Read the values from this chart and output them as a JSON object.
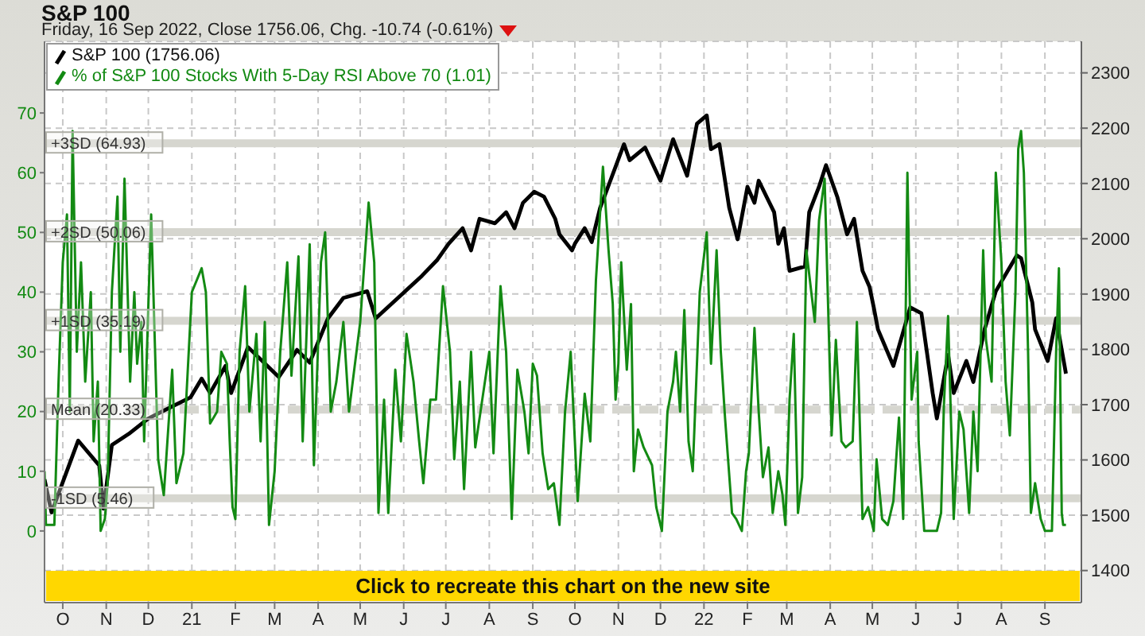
{
  "chart_data": {
    "type": "line",
    "title": "S&P 100",
    "subtitle": "Friday, 16 Sep 2022, Close 1756.06, Chg. -10.74 (-0.61%)",
    "annotations": [
      "Click to recreate this chart on the new site"
    ],
    "legend": "top left",
    "grid": true,
    "marker": "none",
    "xlim": [
      "2020-09-18",
      "2022-09-27"
    ],
    "xticks": [
      {
        "value": "2020-10-01",
        "label": "O"
      },
      {
        "value": "2020-11-01",
        "label": "N"
      },
      {
        "value": "2020-12-01",
        "label": "D"
      },
      {
        "value": "2021-01-01",
        "label": "21"
      },
      {
        "value": "2021-02-01",
        "label": "F"
      },
      {
        "value": "2021-03-01",
        "label": "M"
      },
      {
        "value": "2021-04-01",
        "label": "A"
      },
      {
        "value": "2021-05-01",
        "label": "M"
      },
      {
        "value": "2021-06-01",
        "label": "J"
      },
      {
        "value": "2021-07-01",
        "label": "J"
      },
      {
        "value": "2021-08-01",
        "label": "A"
      },
      {
        "value": "2021-09-01",
        "label": "S"
      },
      {
        "value": "2021-10-01",
        "label": "O"
      },
      {
        "value": "2021-11-01",
        "label": "N"
      },
      {
        "value": "2021-12-01",
        "label": "D"
      },
      {
        "value": "2022-01-01",
        "label": "22"
      },
      {
        "value": "2022-02-01",
        "label": "F"
      },
      {
        "value": "2022-03-01",
        "label": "M"
      },
      {
        "value": "2022-04-01",
        "label": "A"
      },
      {
        "value": "2022-05-01",
        "label": "M"
      },
      {
        "value": "2022-06-01",
        "label": "J"
      },
      {
        "value": "2022-07-01",
        "label": "J"
      },
      {
        "value": "2022-08-01",
        "label": "A"
      },
      {
        "value": "2022-09-01",
        "label": "S"
      }
    ],
    "ylim": [
      -12,
      82
    ],
    "yticks": [
      0,
      10,
      20,
      30,
      40,
      50,
      60,
      70
    ],
    "y2lim": [
      1342,
      2357
    ],
    "y2ticks": [
      1400,
      1500,
      1600,
      1700,
      1800,
      1900,
      2000,
      2100,
      2200,
      2300
    ],
    "ref_lines": [
      {
        "axis": "y",
        "value": 64.93,
        "label": "+3SD (64.93)",
        "color": "#d6d6cf"
      },
      {
        "axis": "y",
        "value": 50.06,
        "label": "+2SD (50.06)",
        "color": "#d6d6cf"
      },
      {
        "axis": "y",
        "value": 35.19,
        "label": "+1SD (35.19)",
        "color": "#d6d6cf"
      },
      {
        "axis": "y",
        "value": 20.33,
        "label": "Mean (20.33)",
        "color": "#d6d6cf",
        "line_style": "dashed"
      },
      {
        "axis": "y",
        "value": 5.46,
        "label": "-1SD (5.46)",
        "color": "#d6d6cf"
      }
    ],
    "series": [
      {
        "name": "S&P 100 (1756.06)",
        "color": "#000000",
        "axis": "y2",
        "x": [
          "2020-09-18",
          "2020-09-23",
          "2020-10-12",
          "2020-10-27",
          "2020-10-30",
          "2020-11-05",
          "2020-11-17",
          "2020-12-01",
          "2020-12-15",
          "2020-12-31",
          "2021-01-08",
          "2021-01-14",
          "2021-01-25",
          "2021-01-29",
          "2021-02-10",
          "2021-03-04",
          "2021-03-17",
          "2021-03-26",
          "2021-04-08",
          "2021-04-19",
          "2021-05-06",
          "2021-05-12",
          "2021-06-02",
          "2021-06-14",
          "2021-06-25",
          "2021-07-03",
          "2021-07-13",
          "2021-07-19",
          "2021-07-25",
          "2021-08-05",
          "2021-08-13",
          "2021-08-19",
          "2021-08-25",
          "2021-09-02",
          "2021-09-09",
          "2021-09-17",
          "2021-09-20",
          "2021-09-29",
          "2021-10-01",
          "2021-10-08",
          "2021-10-13",
          "2021-10-19",
          "2021-10-22",
          "2021-11-05",
          "2021-11-09",
          "2021-11-20",
          "2021-12-01",
          "2021-12-10",
          "2021-12-20",
          "2021-12-27",
          "2022-01-03",
          "2022-01-06",
          "2022-01-12",
          "2022-01-19",
          "2022-01-25",
          "2022-02-01",
          "2022-02-06",
          "2022-02-09",
          "2022-02-20",
          "2022-02-23",
          "2022-02-27",
          "2022-03-03",
          "2022-03-14",
          "2022-03-17",
          "2022-03-24",
          "2022-03-29",
          "2022-04-06",
          "2022-04-13",
          "2022-04-18",
          "2022-04-24",
          "2022-04-29",
          "2022-05-02",
          "2022-05-05",
          "2022-05-16",
          "2022-05-28",
          "2022-06-05",
          "2022-06-13",
          "2022-06-16",
          "2022-06-24",
          "2022-06-28",
          "2022-07-07",
          "2022-07-12",
          "2022-07-20",
          "2022-07-28",
          "2022-08-12",
          "2022-08-15",
          "2022-08-23",
          "2022-08-25",
          "2022-09-03",
          "2022-09-09",
          "2022-09-16"
        ],
        "values": [
          1565,
          1505,
          1635,
          1590,
          1512,
          1627,
          1647,
          1675,
          1693,
          1713,
          1747,
          1721,
          1770,
          1721,
          1804,
          1750,
          1799,
          1776,
          1856,
          1893,
          1905,
          1856,
          1905,
          1933,
          1962,
          1991,
          2019,
          1979,
          2036,
          2028,
          2048,
          2019,
          2065,
          2085,
          2076,
          2036,
          2008,
          1979,
          1991,
          2019,
          1994,
          2056,
          2076,
          2171,
          2142,
          2165,
          2105,
          2180,
          2114,
          2208,
          2223,
          2162,
          2171,
          2056,
          1999,
          2094,
          2065,
          2105,
          2048,
          1991,
          2019,
          1942,
          1950,
          2048,
          2094,
          2133,
          2076,
          2008,
          2036,
          1942,
          1913,
          1876,
          1836,
          1770,
          1876,
          1865,
          1721,
          1675,
          1790,
          1721,
          1779,
          1741,
          1836,
          1905,
          1970,
          1965,
          1885,
          1836,
          1779,
          1856,
          1756
        ]
      },
      {
        "name": "% of S&P 100 Stocks With 5-Day RSI Above 70 (1.01)",
        "color": "#138a13",
        "x": [
          "2020-09-18",
          "2020-09-19",
          "2020-09-25",
          "2020-09-28",
          "2020-10-01",
          "2020-10-04",
          "2020-10-06",
          "2020-10-08",
          "2020-10-11",
          "2020-10-14",
          "2020-10-17",
          "2020-10-21",
          "2020-10-23",
          "2020-10-26",
          "2020-10-28",
          "2020-10-31",
          "2020-11-02",
          "2020-11-05",
          "2020-11-09",
          "2020-11-11",
          "2020-11-14",
          "2020-11-18",
          "2020-11-21",
          "2020-11-23",
          "2020-11-26",
          "2020-11-28",
          "2020-12-03",
          "2020-12-08",
          "2020-12-12",
          "2020-12-18",
          "2020-12-21",
          "2020-12-26",
          "2021-01-01",
          "2021-01-08",
          "2021-01-11",
          "2021-01-14",
          "2021-01-19",
          "2021-01-22",
          "2021-01-26",
          "2021-01-28",
          "2021-01-30",
          "2021-02-01",
          "2021-02-04",
          "2021-02-08",
          "2021-02-11",
          "2021-02-16",
          "2021-02-19",
          "2021-02-22",
          "2021-02-25",
          "2021-03-01",
          "2021-03-05",
          "2021-03-10",
          "2021-03-13",
          "2021-03-18",
          "2021-03-21",
          "2021-03-26",
          "2021-03-29",
          "2021-04-03",
          "2021-04-06",
          "2021-04-10",
          "2021-04-14",
          "2021-04-19",
          "2021-04-23",
          "2021-05-01",
          "2021-05-07",
          "2021-05-11",
          "2021-05-14",
          "2021-05-18",
          "2021-05-21",
          "2021-05-26",
          "2021-05-30",
          "2021-06-03",
          "2021-06-08",
          "2021-06-12",
          "2021-06-15",
          "2021-06-20",
          "2021-06-24",
          "2021-06-29",
          "2021-07-04",
          "2021-07-07",
          "2021-07-11",
          "2021-07-14",
          "2021-07-19",
          "2021-07-22",
          "2021-07-27",
          "2021-08-01",
          "2021-08-04",
          "2021-08-09",
          "2021-08-13",
          "2021-08-17",
          "2021-08-21",
          "2021-08-26",
          "2021-08-29",
          "2021-09-01",
          "2021-09-04",
          "2021-09-08",
          "2021-09-12",
          "2021-09-16",
          "2021-09-20",
          "2021-09-24",
          "2021-09-28",
          "2021-10-03",
          "2021-10-08",
          "2021-10-12",
          "2021-10-16",
          "2021-10-21",
          "2021-10-25",
          "2021-10-28",
          "2021-10-30",
          "2021-11-01",
          "2021-11-03",
          "2021-11-07",
          "2021-11-10",
          "2021-11-12",
          "2021-11-15",
          "2021-11-19",
          "2021-11-25",
          "2021-11-28",
          "2021-12-02",
          "2021-12-06",
          "2021-12-10",
          "2021-12-12",
          "2021-12-15",
          "2021-12-18",
          "2021-12-21",
          "2021-12-24",
          "2021-12-29",
          "2022-01-03",
          "2022-01-06",
          "2022-01-10",
          "2022-01-13",
          "2022-01-16",
          "2022-01-21",
          "2022-01-24",
          "2022-01-28",
          "2022-01-31",
          "2022-02-02",
          "2022-02-06",
          "2022-02-09",
          "2022-02-12",
          "2022-02-16",
          "2022-02-19",
          "2022-02-23",
          "2022-02-26",
          "2022-02-28",
          "2022-03-03",
          "2022-03-06",
          "2022-03-09",
          "2022-03-12",
          "2022-03-15",
          "2022-03-19",
          "2022-03-21",
          "2022-03-24",
          "2022-03-28",
          "2022-04-02",
          "2022-04-05",
          "2022-04-09",
          "2022-04-12",
          "2022-04-17",
          "2022-04-20",
          "2022-04-24",
          "2022-04-28",
          "2022-05-02",
          "2022-05-04",
          "2022-05-08",
          "2022-05-12",
          "2022-05-16",
          "2022-05-20",
          "2022-05-23",
          "2022-05-26",
          "2022-05-29",
          "2022-06-02",
          "2022-06-03",
          "2022-06-07",
          "2022-06-11",
          "2022-06-16",
          "2022-06-19",
          "2022-06-21",
          "2022-06-24",
          "2022-06-28",
          "2022-07-02",
          "2022-07-05",
          "2022-07-09",
          "2022-07-12",
          "2022-07-15",
          "2022-07-19",
          "2022-07-21",
          "2022-07-25",
          "2022-07-28",
          "2022-08-01",
          "2022-08-04",
          "2022-08-07",
          "2022-08-11",
          "2022-08-13",
          "2022-08-15",
          "2022-08-17",
          "2022-08-20",
          "2022-08-22",
          "2022-08-25",
          "2022-08-29",
          "2022-09-01",
          "2022-09-06",
          "2022-09-09",
          "2022-09-11",
          "2022-09-13",
          "2022-09-14",
          "2022-09-16"
        ],
        "values": [
          10,
          1,
          1,
          25,
          45,
          53,
          20,
          67,
          30,
          45,
          25,
          40,
          15,
          25,
          0,
          2,
          8,
          40,
          56,
          30,
          59,
          25,
          40,
          28,
          35,
          15,
          53,
          12,
          6,
          27,
          8,
          13,
          40,
          44,
          40,
          18,
          20,
          30,
          28,
          15,
          4,
          2,
          30,
          41,
          20,
          33,
          15,
          35,
          1,
          10,
          30,
          45,
          26,
          46,
          15,
          48,
          11,
          45,
          50,
          20,
          25,
          35,
          20,
          35,
          55,
          45,
          3,
          22,
          3,
          27,
          15,
          33,
          25,
          15,
          8,
          22,
          22,
          41,
          30,
          12,
          25,
          7,
          30,
          14,
          22,
          30,
          13,
          41,
          30,
          2,
          27,
          20,
          13,
          28,
          26,
          13,
          7,
          8,
          1,
          20,
          30,
          5,
          23,
          15,
          42,
          61,
          47,
          38,
          22,
          28,
          45,
          27,
          38,
          10,
          17,
          14,
          11,
          4,
          0,
          20,
          25,
          30,
          20,
          37,
          15,
          10,
          40,
          50,
          28,
          47,
          30,
          19,
          3,
          2,
          0,
          10,
          13,
          34,
          20,
          9,
          14,
          3,
          10,
          6,
          1,
          22,
          33,
          3,
          9,
          47,
          39,
          35,
          52,
          59,
          16,
          32,
          15,
          14,
          15,
          35,
          2,
          4,
          0,
          12,
          2,
          1,
          5,
          19,
          2,
          60,
          22,
          30,
          15,
          0,
          0,
          0,
          3,
          21,
          36,
          2,
          20,
          17,
          3,
          20,
          10,
          47,
          32,
          25,
          60,
          45,
          25,
          16,
          40,
          64,
          67,
          60,
          30,
          3,
          8,
          2,
          0,
          0,
          30,
          44,
          3,
          1,
          1
        ]
      }
    ]
  }
}
